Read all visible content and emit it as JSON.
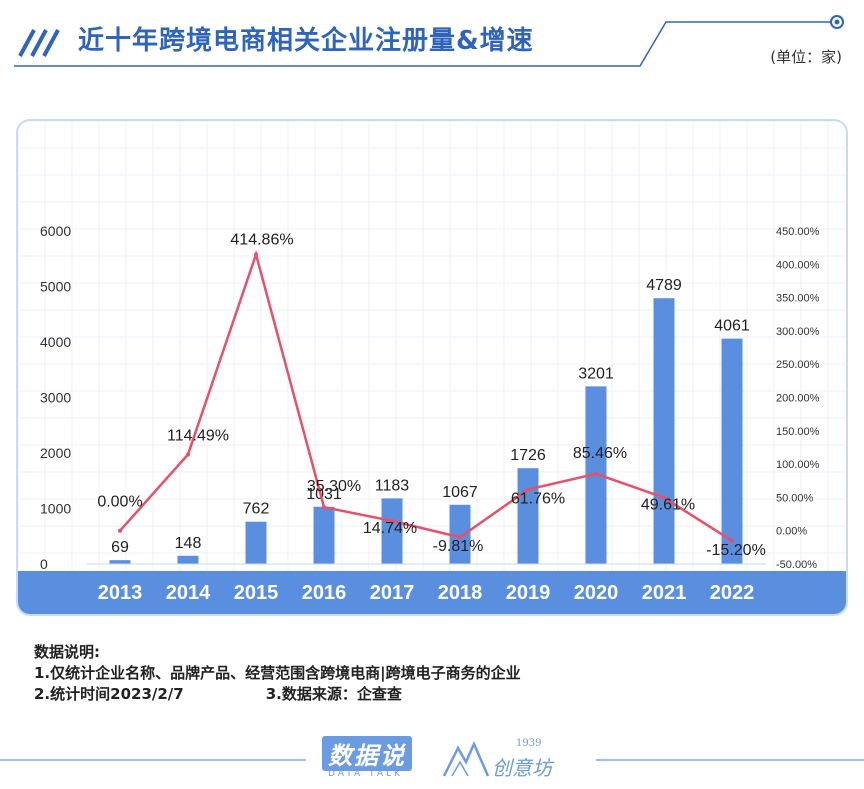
{
  "header": {
    "title": "近十年跨境电商相关企业注册量&增速",
    "unit": "(单位：家)"
  },
  "colors": {
    "accent": "#2f64bd",
    "bar": "#5a8fe0",
    "line": "#e8506a",
    "axis_band": "#5a8fe0",
    "card_border": "#c9daf5"
  },
  "chart_data": {
    "type": "bar",
    "title": "近十年跨境电商相关企业注册量&增速",
    "categories": [
      "2013",
      "2014",
      "2015",
      "2016",
      "2017",
      "2018",
      "2019",
      "2020",
      "2021",
      "2022"
    ],
    "series": [
      {
        "name": "注册量",
        "type": "bar",
        "axis": "left",
        "values": [
          69,
          148,
          762,
          1031,
          1183,
          1067,
          1726,
          3201,
          4789,
          4061
        ],
        "labels": [
          "69",
          "148",
          "762",
          "1031",
          "1183",
          "1067",
          "1726",
          "3201",
          "4789",
          "4061"
        ]
      },
      {
        "name": "增速",
        "type": "line",
        "axis": "right",
        "values": [
          0.0,
          114.49,
          414.86,
          35.3,
          14.74,
          -9.81,
          61.76,
          85.46,
          49.61,
          -15.2
        ],
        "labels": [
          "0.00%",
          "114.49%",
          "414.86%",
          "35.30%",
          "14.74%",
          "-9.81%",
          "61.76%",
          "85.46%",
          "49.61%",
          "-15.20%"
        ]
      }
    ],
    "y_left": {
      "min": 0,
      "max": 6000,
      "ticks": [
        "0",
        "1000",
        "2000",
        "3000",
        "4000",
        "5000",
        "6000"
      ],
      "tick_values": [
        0,
        1000,
        2000,
        3000,
        4000,
        5000,
        6000
      ]
    },
    "y_right": {
      "min": -50,
      "max": 450,
      "ticks": [
        "-50.00%",
        "0.00%",
        "50.00%",
        "100.00%",
        "150.00%",
        "200.00%",
        "250.00%",
        "300.00%",
        "350.00%",
        "400.00%",
        "450.00%"
      ],
      "tick_values": [
        -50,
        0,
        50,
        100,
        150,
        200,
        250,
        300,
        350,
        400,
        450
      ]
    },
    "grid": true
  },
  "notes": {
    "heading": "数据说明:",
    "line1": "1.仅统计企业名称、品牌产品、经营范围含跨境电商|跨境电子商务的企业",
    "line2": "2.统计时间2023/2/7",
    "line3": "3.数据来源：企查查"
  },
  "footer": {
    "brand1": "数据说",
    "brand1_sub": "DATA TALK",
    "brand2_year": "1939",
    "brand2_name": "创意坊"
  }
}
